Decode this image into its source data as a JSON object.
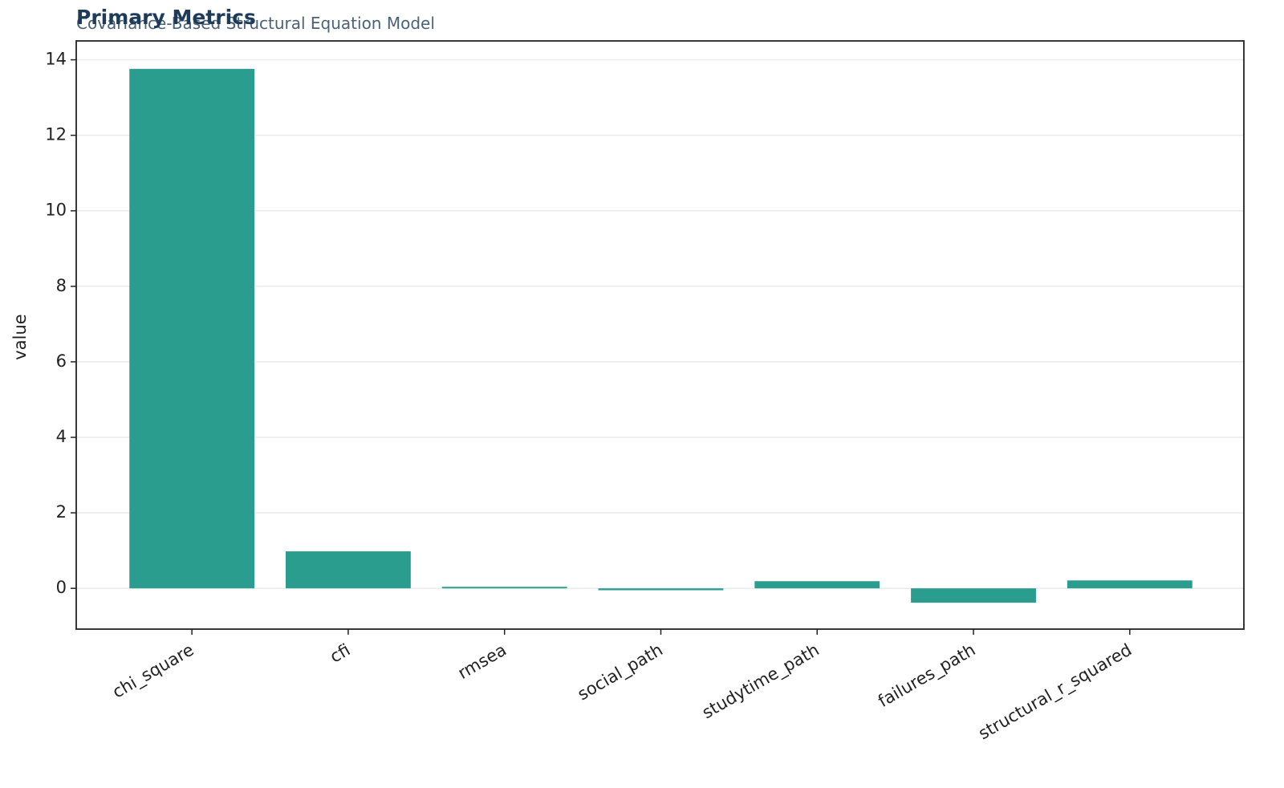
{
  "chart_data": {
    "type": "bar",
    "title": "Primary Metrics",
    "subtitle": "Covariance-Based Structural Equation Model",
    "y_label": "value",
    "categories": [
      "chi_square",
      "cfi",
      "rmsea",
      "social_path",
      "studytime_path",
      "failures_path",
      "structural_r_squared"
    ],
    "values": [
      13.76,
      0.98,
      0.04,
      -0.05,
      0.19,
      -0.38,
      0.21
    ],
    "color": "#2a9d8f",
    "ylim": [
      -1.08,
      14.5
    ],
    "yticks": [
      0,
      2,
      4,
      6,
      8,
      10,
      12,
      14
    ],
    "grid": true
  }
}
